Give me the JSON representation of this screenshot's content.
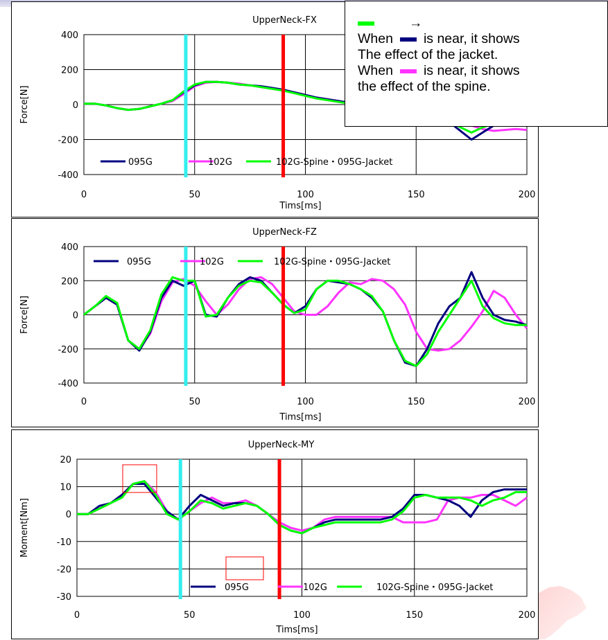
{
  "note": {
    "arrow": "→",
    "line1_before": "When",
    "line1_after": "is near, it shows",
    "line2": "The effect of the jacket.",
    "line3_before": "When",
    "line3_after": "is near, it shows",
    "line4": "the effect of the spine.",
    "swatch_top_color": "#00ff00",
    "swatch_near1_color": "#00007f",
    "swatch_near2_color": "#ff33ff"
  },
  "colors": {
    "s095G": "#00007f",
    "s102G": "#ff33ff",
    "sMix": "#00ff00",
    "vline_cyan": "#33eeee",
    "vline_red": "#ff0000",
    "box": "#ff0000"
  },
  "chart_data": [
    {
      "type": "line",
      "title": "UpperNeck-FX",
      "xlabel": "Tims[ms]",
      "ylabel": "Force[N]",
      "xlim": [
        0,
        200
      ],
      "ylim": [
        -400,
        400
      ],
      "xticks": [
        0,
        50,
        100,
        150,
        200
      ],
      "yticks": [
        400,
        200,
        0,
        -200,
        -400
      ],
      "legend_position": "bottom-left",
      "vlines": [
        {
          "x": 46,
          "color": "cyan"
        },
        {
          "x": 90,
          "color": "red"
        }
      ],
      "series": [
        {
          "name": "095G",
          "x": [
            0,
            5,
            10,
            15,
            20,
            25,
            30,
            35,
            40,
            45,
            50,
            55,
            60,
            65,
            70,
            75,
            80,
            85,
            90,
            95,
            100,
            105,
            110,
            115,
            120,
            125,
            130,
            135,
            140,
            145,
            150,
            155,
            160,
            165,
            170,
            175,
            180,
            185,
            190,
            195,
            200
          ],
          "y": [
            5,
            5,
            -5,
            -20,
            -30,
            -25,
            -10,
            5,
            25,
            70,
            110,
            130,
            130,
            125,
            115,
            110,
            105,
            95,
            85,
            70,
            55,
            40,
            30,
            20,
            10,
            5,
            0,
            -5,
            -10,
            -20,
            -30,
            -50,
            -80,
            -100,
            -150,
            -200,
            -160,
            -120,
            -100,
            -110,
            -110
          ]
        },
        {
          "name": "102G",
          "x": [
            0,
            5,
            10,
            15,
            20,
            25,
            30,
            35,
            40,
            45,
            50,
            55,
            60,
            65,
            70,
            75,
            80,
            85,
            90,
            95,
            100,
            105,
            110,
            115,
            120,
            125,
            130,
            135,
            140,
            145,
            150,
            155,
            160,
            165,
            170,
            175,
            180,
            185,
            190,
            195,
            200
          ],
          "y": [
            5,
            5,
            -5,
            -20,
            -30,
            -25,
            -10,
            5,
            20,
            60,
            105,
            125,
            130,
            125,
            120,
            110,
            100,
            90,
            80,
            70,
            55,
            40,
            30,
            20,
            10,
            5,
            0,
            -5,
            -10,
            -20,
            -30,
            -40,
            -60,
            -80,
            -100,
            -120,
            -140,
            -150,
            -145,
            -140,
            -145
          ]
        },
        {
          "name": "102G-Spine・095G-Jacket",
          "x": [
            0,
            5,
            10,
            15,
            20,
            25,
            30,
            35,
            40,
            45,
            50,
            55,
            60,
            65,
            70,
            75,
            80,
            85,
            90,
            95,
            100,
            105,
            110,
            115,
            120,
            125,
            130,
            135,
            140,
            145,
            150,
            155,
            160,
            165,
            170,
            175,
            180,
            185,
            190,
            195,
            200
          ],
          "y": [
            5,
            5,
            -5,
            -20,
            -30,
            -25,
            -10,
            5,
            25,
            75,
            115,
            130,
            130,
            125,
            115,
            110,
            100,
            90,
            80,
            65,
            50,
            35,
            25,
            15,
            5,
            0,
            -5,
            -10,
            -15,
            -25,
            -35,
            -50,
            -70,
            -90,
            -130,
            -160,
            -130,
            -110,
            -105,
            -110,
            -105
          ]
        }
      ]
    },
    {
      "type": "line",
      "title": "UpperNeck-FZ",
      "xlabel": "Tims[ms]",
      "ylabel": "Force[N]",
      "xlim": [
        0,
        200
      ],
      "ylim": [
        -400,
        400
      ],
      "xticks": [
        0,
        50,
        100,
        150,
        200
      ],
      "yticks": [
        400,
        200,
        0,
        -200,
        -400
      ],
      "legend_position": "top",
      "vlines": [
        {
          "x": 46,
          "color": "cyan"
        },
        {
          "x": 90,
          "color": "red"
        }
      ],
      "series": [
        {
          "name": "095G",
          "x": [
            0,
            5,
            10,
            15,
            20,
            25,
            30,
            35,
            40,
            45,
            50,
            55,
            60,
            65,
            70,
            75,
            80,
            85,
            90,
            95,
            100,
            105,
            110,
            115,
            120,
            125,
            130,
            135,
            140,
            145,
            150,
            155,
            160,
            165,
            170,
            175,
            180,
            185,
            190,
            195,
            200
          ],
          "y": [
            0,
            50,
            100,
            60,
            -150,
            -210,
            -100,
            100,
            200,
            170,
            200,
            0,
            -10,
            100,
            180,
            220,
            200,
            130,
            60,
            10,
            50,
            150,
            200,
            190,
            180,
            150,
            100,
            20,
            -150,
            -280,
            -300,
            -200,
            -50,
            50,
            100,
            250,
            100,
            0,
            -30,
            -40,
            -60
          ]
        },
        {
          "name": "102G",
          "x": [
            0,
            5,
            10,
            15,
            20,
            25,
            30,
            35,
            40,
            45,
            50,
            55,
            60,
            65,
            70,
            75,
            80,
            85,
            90,
            95,
            100,
            105,
            110,
            115,
            120,
            125,
            130,
            135,
            140,
            145,
            150,
            155,
            160,
            165,
            170,
            175,
            180,
            185,
            190,
            195,
            200
          ],
          "y": [
            0,
            50,
            100,
            60,
            -150,
            -200,
            -110,
            80,
            190,
            210,
            170,
            80,
            0,
            60,
            150,
            210,
            220,
            180,
            100,
            20,
            0,
            0,
            50,
            130,
            190,
            180,
            210,
            200,
            150,
            60,
            -100,
            -200,
            -210,
            -200,
            -150,
            -70,
            20,
            140,
            100,
            0,
            -80
          ]
        },
        {
          "name": "102G-Spine・095G-Jacket",
          "x": [
            0,
            5,
            10,
            15,
            20,
            25,
            30,
            35,
            40,
            45,
            50,
            55,
            60,
            65,
            70,
            75,
            80,
            85,
            90,
            95,
            100,
            105,
            110,
            115,
            120,
            125,
            130,
            135,
            140,
            145,
            150,
            155,
            160,
            165,
            170,
            175,
            180,
            185,
            190,
            195,
            200
          ],
          "y": [
            0,
            50,
            110,
            70,
            -150,
            -200,
            -90,
            120,
            220,
            200,
            200,
            -10,
            0,
            100,
            170,
            200,
            190,
            130,
            60,
            10,
            30,
            150,
            200,
            200,
            180,
            150,
            110,
            20,
            -150,
            -270,
            -300,
            -230,
            -100,
            0,
            100,
            200,
            50,
            -20,
            -50,
            -60,
            -60
          ]
        }
      ]
    },
    {
      "type": "line",
      "title": "UpperNeck-MY",
      "xlabel": "Tims[ms]",
      "ylabel": "Moment[Nm]",
      "xlim": [
        0,
        200
      ],
      "ylim": [
        -30,
        20
      ],
      "xticks": [
        0,
        50,
        100,
        150,
        200
      ],
      "yticks": [
        20,
        10,
        0,
        -10,
        -20,
        -30
      ],
      "legend_position": "bottom-right",
      "vlines": [
        {
          "x": 46,
          "color": "cyan"
        },
        {
          "x": 90,
          "color": "red"
        }
      ],
      "series": [
        {
          "name": "095G",
          "x": [
            0,
            5,
            10,
            15,
            20,
            25,
            30,
            35,
            40,
            45,
            50,
            55,
            60,
            65,
            70,
            75,
            80,
            85,
            90,
            95,
            100,
            105,
            110,
            115,
            120,
            125,
            130,
            135,
            140,
            145,
            150,
            155,
            160,
            165,
            170,
            175,
            180,
            185,
            190,
            195,
            200
          ],
          "y": [
            0,
            0,
            3,
            4,
            7,
            11,
            11,
            6,
            1,
            -2,
            3,
            7,
            5,
            3,
            4,
            4,
            3,
            0,
            -4,
            -6,
            -7,
            -5,
            -3,
            -2,
            -2,
            -2,
            -2,
            -2,
            -1,
            2,
            7,
            7,
            6,
            5,
            3,
            -1,
            5,
            8,
            9,
            9,
            9
          ]
        },
        {
          "name": "102G",
          "x": [
            0,
            5,
            10,
            15,
            20,
            25,
            30,
            35,
            40,
            45,
            50,
            55,
            60,
            65,
            70,
            75,
            80,
            85,
            90,
            95,
            100,
            105,
            110,
            115,
            120,
            125,
            130,
            135,
            140,
            145,
            150,
            155,
            160,
            165,
            170,
            175,
            180,
            185,
            190,
            195,
            200
          ],
          "y": [
            0,
            0,
            2,
            4,
            7,
            11,
            12,
            8,
            1,
            -2,
            1,
            4,
            6,
            4,
            4,
            5,
            3,
            0,
            -3,
            -5,
            -6,
            -5,
            -2,
            -1,
            -1,
            -1,
            -1,
            -1,
            -1,
            -3,
            -3,
            -3,
            -2,
            5,
            6,
            6,
            7,
            7,
            5,
            3,
            6
          ]
        },
        {
          "name": "102G-Spine・095G-Jacket",
          "x": [
            0,
            5,
            10,
            15,
            20,
            25,
            30,
            35,
            40,
            45,
            50,
            55,
            60,
            65,
            70,
            75,
            80,
            85,
            90,
            95,
            100,
            105,
            110,
            115,
            120,
            125,
            130,
            135,
            140,
            145,
            150,
            155,
            160,
            165,
            170,
            175,
            180,
            185,
            190,
            195,
            200
          ],
          "y": [
            0,
            0,
            2,
            4,
            6,
            11,
            12,
            7,
            0,
            -2,
            1,
            5,
            4,
            2,
            3,
            4,
            3,
            0,
            -4,
            -6,
            -7,
            -5,
            -4,
            -3,
            -3,
            -3,
            -3,
            -3,
            -2,
            1,
            6,
            7,
            6,
            6,
            6,
            5,
            3,
            5,
            6,
            8,
            8
          ]
        }
      ]
    }
  ]
}
